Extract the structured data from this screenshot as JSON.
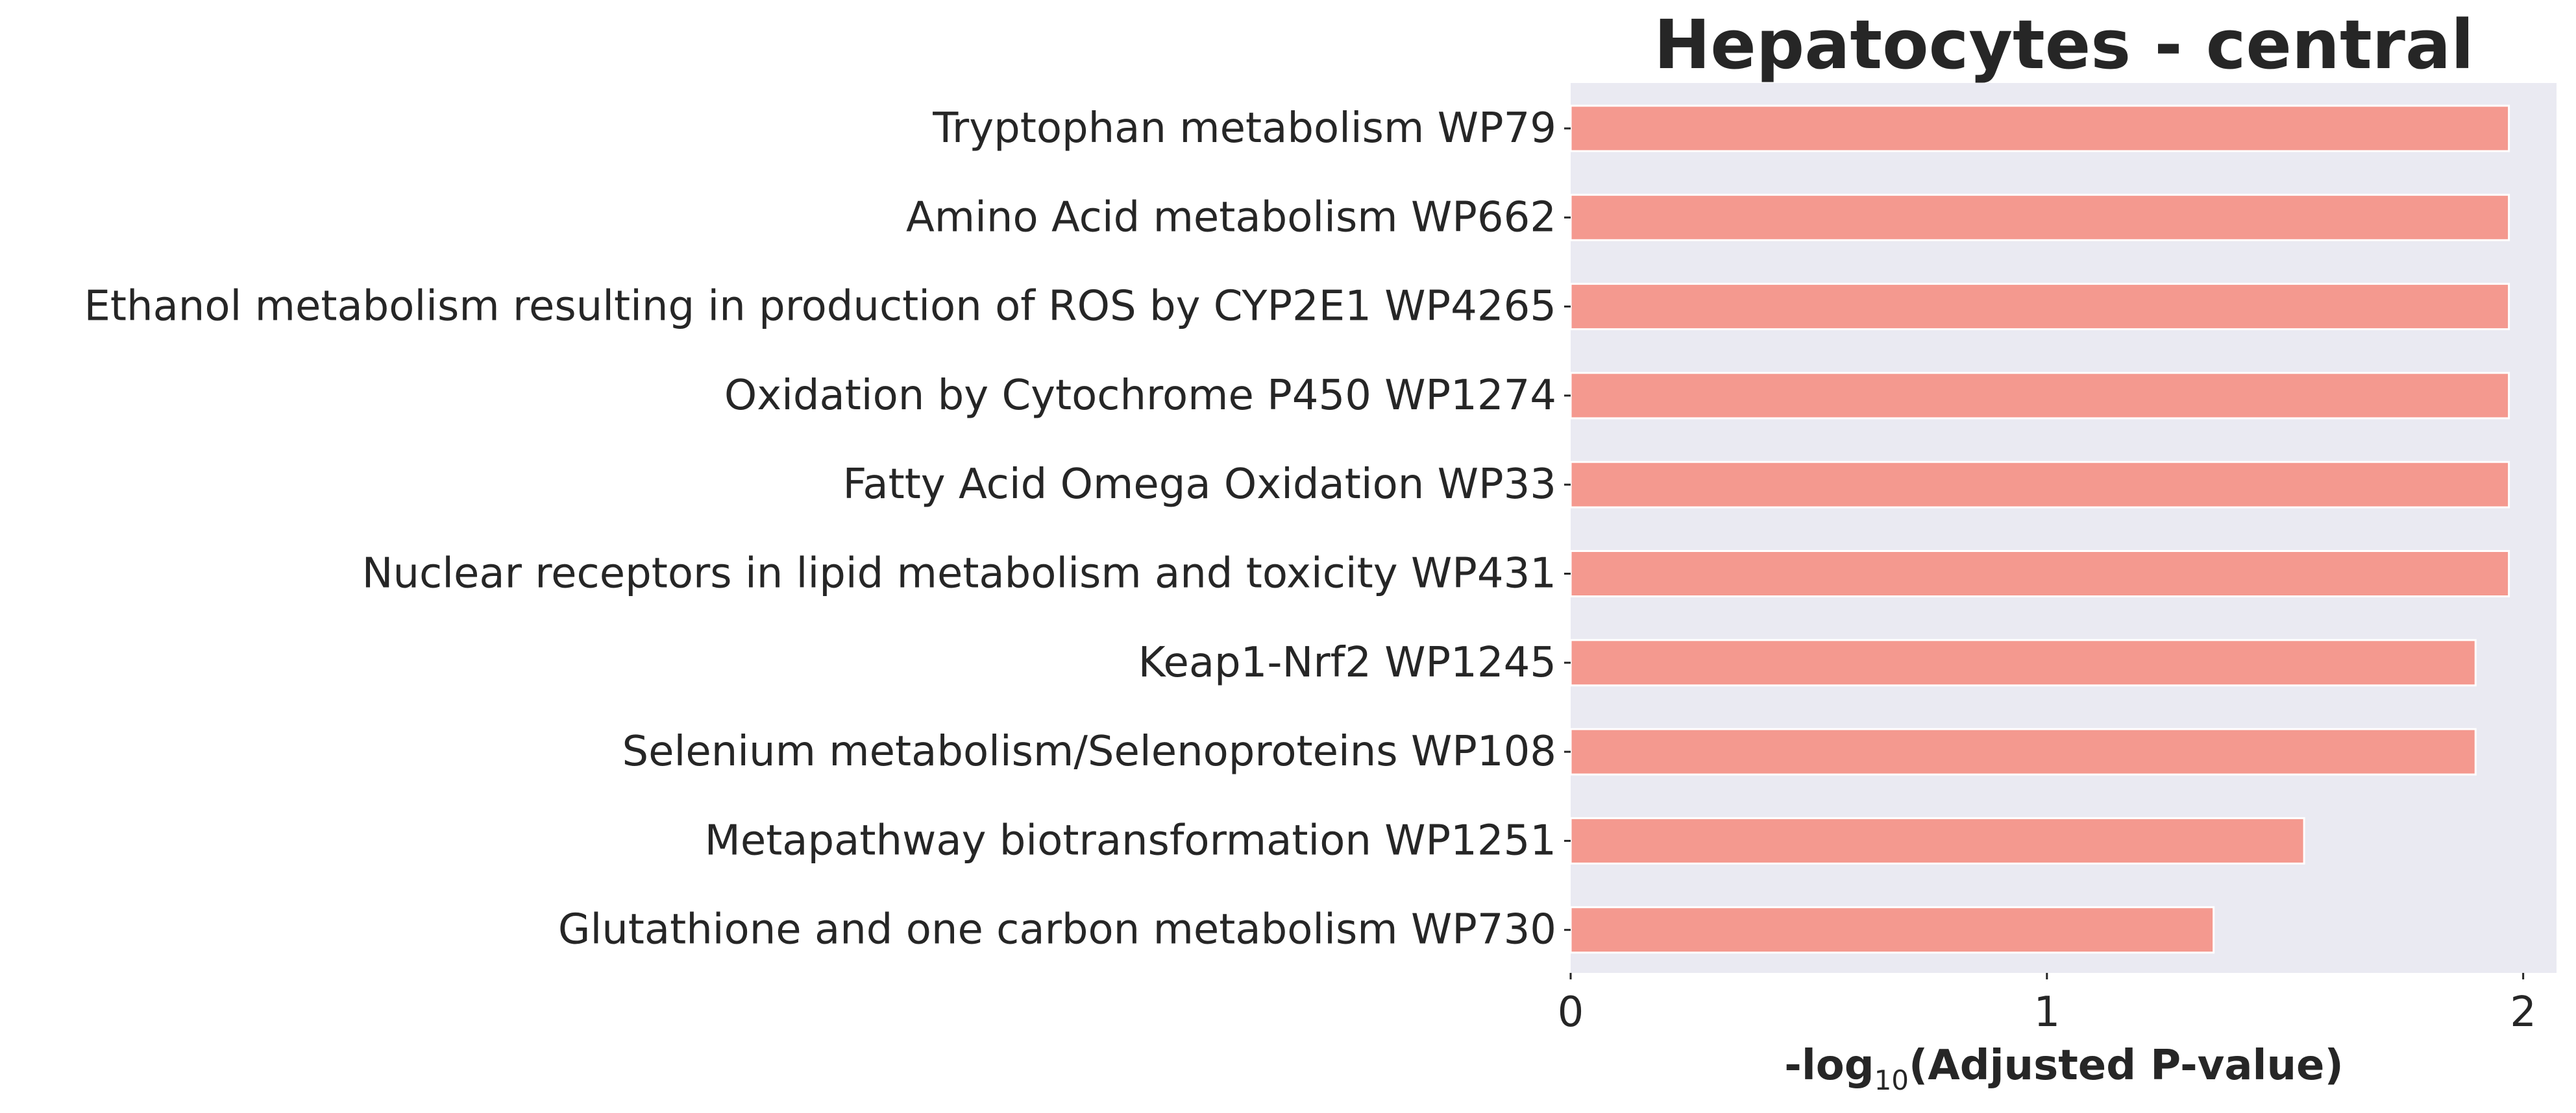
{
  "chart_data": {
    "type": "bar",
    "orientation": "horizontal",
    "title": "Hepatocytes - central",
    "xlabel": {
      "prefix": "-log",
      "subscript": "10",
      "suffix": "(Adjusted P-value)"
    },
    "ylabel": "",
    "categories": [
      "Tryptophan metabolism WP79",
      "Amino Acid metabolism WP662",
      "Ethanol metabolism resulting in production of ROS by CYP2E1 WP4265",
      "Oxidation by Cytochrome P450 WP1274",
      "Fatty Acid Omega Oxidation WP33",
      "Nuclear receptors in lipid metabolism and toxicity WP431",
      "Keap1-Nrf2 WP1245",
      "Selenium metabolism/Selenoproteins WP108",
      "Metapathway biotransformation WP1251",
      "Glutathione and one carbon metabolism WP730"
    ],
    "values": [
      1.97,
      1.97,
      1.97,
      1.97,
      1.97,
      1.97,
      1.9,
      1.9,
      1.54,
      1.35
    ],
    "xlim": [
      0,
      2.07
    ],
    "xticks": [
      0,
      1,
      2
    ],
    "xtick_labels": [
      "0",
      "1",
      "2"
    ],
    "grid": false,
    "legend": "none",
    "colors": {
      "bar": "#f4998f",
      "bar_edge": "#ffffff",
      "plot_background": "#eaeaf2",
      "text": "#262626"
    }
  }
}
